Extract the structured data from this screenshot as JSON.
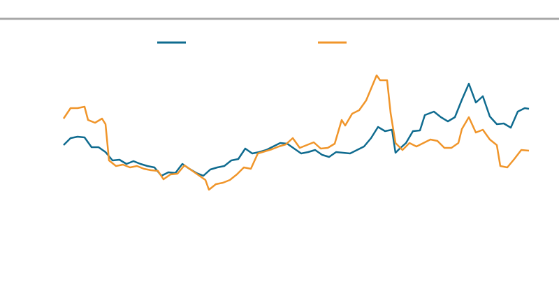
{
  "chart_data": {
    "type": "line",
    "xlim": [
      91,
      757
    ],
    "ylim": [
      0,
      300
    ],
    "series": [
      {
        "color": "#0f6b8f",
        "x": [
          91,
          101,
          111,
          121,
          131,
          141,
          151,
          161,
          171,
          181,
          191,
          201,
          211,
          221,
          231,
          241,
          251,
          261,
          271,
          281,
          291,
          301,
          311,
          321,
          331,
          341,
          351,
          361,
          371,
          381,
          391,
          401,
          411,
          421,
          431,
          441,
          451,
          461,
          471,
          481,
          491,
          501,
          511,
          521,
          531,
          541,
          551,
          561,
          566,
          571,
          581,
          591,
          601,
          608,
          621,
          631,
          641,
          651,
          661,
          671,
          681,
          691,
          701,
          711,
          721,
          731,
          741,
          751,
          757
        ],
        "values": [
          162,
          172,
          174,
          173,
          159,
          159,
          152,
          140,
          141,
          135,
          139,
          135,
          132,
          130,
          118,
          123,
          122,
          135,
          128,
          122,
          118,
          127,
          130,
          132,
          140,
          142,
          157,
          150,
          152,
          155,
          160,
          165,
          164,
          157,
          150,
          152,
          155,
          148,
          145,
          152,
          151,
          150,
          155,
          160,
          172,
          188,
          182,
          184,
          151,
          156,
          165,
          182,
          183,
          205,
          210,
          202,
          196,
          202,
          227,
          250,
          223,
          232,
          203,
          192,
          193,
          187,
          210,
          215,
          214
        ]
      },
      {
        "color": "#f0952a",
        "x": [
          91,
          101,
          111,
          121,
          126,
          136,
          146,
          151,
          156,
          166,
          176,
          186,
          196,
          206,
          216,
          226,
          234,
          244,
          254,
          264,
          274,
          284,
          294,
          299,
          309,
          319,
          329,
          339,
          349,
          359,
          369,
          379,
          389,
          399,
          409,
          419,
          429,
          439,
          449,
          459,
          469,
          479,
          489,
          494,
          504,
          514,
          524,
          534,
          539,
          544,
          554,
          559,
          566,
          576,
          586,
          596,
          606,
          616,
          626,
          636,
          646,
          656,
          661,
          671,
          681,
          691,
          701,
          711,
          716,
          726,
          736,
          746,
          757
        ],
        "values": [
          200,
          215,
          215,
          217,
          198,
          194,
          200,
          192,
          140,
          132,
          134,
          130,
          132,
          128,
          126,
          125,
          113,
          120,
          121,
          133,
          126,
          119,
          112,
          98,
          106,
          108,
          112,
          120,
          130,
          128,
          150,
          153,
          156,
          160,
          163,
          172,
          158,
          162,
          166,
          157,
          158,
          164,
          198,
          190,
          207,
          212,
          226,
          250,
          262,
          255,
          255,
          208,
          165,
          155,
          165,
          160,
          165,
          170,
          168,
          158,
          158,
          165,
          185,
          202,
          180,
          184,
          170,
          162,
          132,
          130,
          142,
          155,
          154
        ]
      }
    ]
  }
}
